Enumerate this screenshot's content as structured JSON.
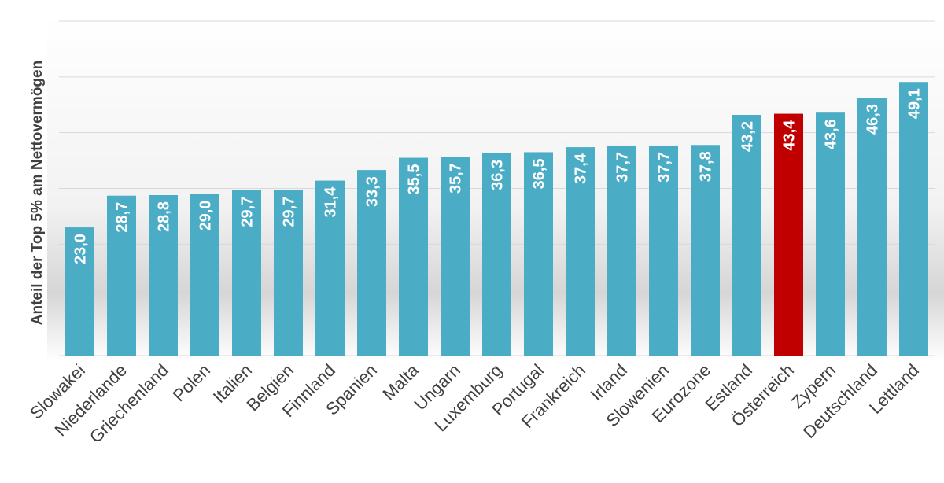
{
  "chart_data": {
    "type": "bar",
    "title": "",
    "xlabel": "",
    "ylabel": "Anteil der Top 5% am Nettovermögen",
    "categories": [
      "Slowakei",
      "Niederlande",
      "Griechenland",
      "Polen",
      "Italien",
      "Belgien",
      "Finnland",
      "Spanien",
      "Malta",
      "Ungarn",
      "Luxemburg",
      "Portugal",
      "Frankreich",
      "Irland",
      "Slowenien",
      "Eurozone",
      "Estland",
      "Österreich",
      "Zypern",
      "Deutschland",
      "Lettland"
    ],
    "values": [
      23.0,
      28.7,
      28.8,
      29.0,
      29.7,
      29.7,
      31.4,
      33.3,
      35.5,
      35.7,
      36.3,
      36.5,
      37.4,
      37.7,
      37.7,
      37.8,
      43.2,
      43.4,
      43.6,
      46.3,
      49.1
    ],
    "value_labels": [
      "23,0",
      "28,7",
      "28,8",
      "29,0",
      "29,7",
      "29,7",
      "31,4",
      "33,3",
      "35,5",
      "35,7",
      "36,3",
      "36,5",
      "37,4",
      "37,7",
      "37,7",
      "37,8",
      "43,2",
      "43,4",
      "43,6",
      "46,3",
      "49,1"
    ],
    "ylim": [
      0,
      60
    ],
    "gridlines": [
      0,
      10,
      20,
      30,
      40,
      50,
      60
    ],
    "grid": true,
    "legend": "none",
    "highlight_category": "Österreich",
    "colors": {
      "bar": "#4aacc5",
      "highlight": "#c00000",
      "grid": "#d9d9d9",
      "label": "#404040"
    }
  }
}
